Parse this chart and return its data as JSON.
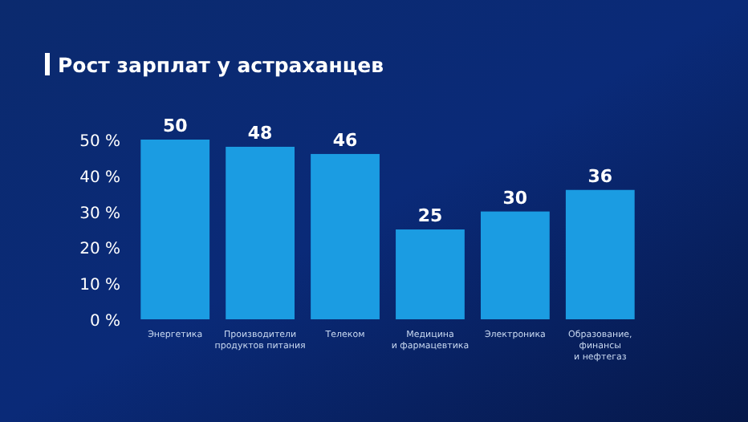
{
  "chart_data": {
    "type": "bar",
    "title": "Рост зарплат у астраханцев",
    "categories": [
      "Энергетика",
      "Производители\nпродуктов питания",
      "Телеком",
      "Медицина\nи фармацевтика",
      "Электроника",
      "Образование,\nфинансы\nи нефтегаз"
    ],
    "values": [
      50,
      48,
      46,
      25,
      30,
      36
    ],
    "color": "#1b9ce2",
    "ylim": [
      0,
      50
    ],
    "yticks": [
      {
        "value": 0,
        "label": "0 %"
      },
      {
        "value": 10,
        "label": "10 %"
      },
      {
        "value": 20,
        "label": "20 %"
      },
      {
        "value": 30,
        "label": "30 %"
      },
      {
        "value": 40,
        "label": "40 %"
      },
      {
        "value": 50,
        "label": "50 %"
      }
    ],
    "data_labels": true
  }
}
